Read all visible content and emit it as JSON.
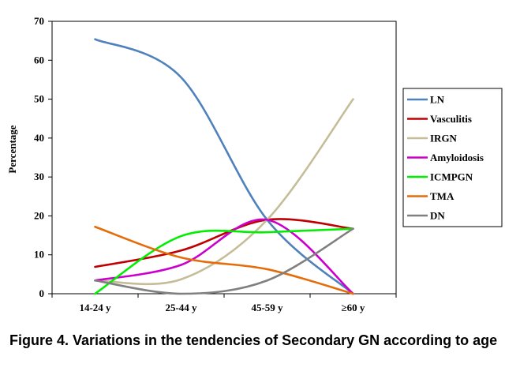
{
  "caption": "Figure 4. Variations in the tendencies of Secondary GN  according to age",
  "chart_data": {
    "type": "line",
    "categories": [
      "14-24 y",
      "25-44 y",
      "45-59 y",
      "≥60 y"
    ],
    "ylabel": "Percentage",
    "ylim": [
      0,
      70
    ],
    "yticks": [
      0,
      10,
      20,
      30,
      40,
      50,
      60,
      70
    ],
    "legend_position": "right",
    "smooth": true,
    "series": [
      {
        "name": "LN",
        "color": "#4f81bd",
        "values": [
          65.4,
          55.6,
          19.0,
          0
        ]
      },
      {
        "name": "Vasculitis",
        "color": "#c00000",
        "values": [
          6.9,
          11.1,
          19.0,
          16.7
        ]
      },
      {
        "name": "IRGN",
        "color": "#c4bd97",
        "values": [
          3.4,
          3.7,
          19.0,
          50.0
        ]
      },
      {
        "name": "Amyloidosis",
        "color": "#cc00cc",
        "values": [
          3.4,
          7.4,
          19.0,
          0
        ]
      },
      {
        "name": "ICMPGN",
        "color": "#00ee00",
        "values": [
          0,
          14.8,
          15.8,
          16.7
        ]
      },
      {
        "name": "TMA",
        "color": "#e46c0a",
        "values": [
          17.2,
          9.3,
          6.3,
          0
        ]
      },
      {
        "name": "DN",
        "color": "#808080",
        "values": [
          3.4,
          0,
          3.4,
          16.7
        ]
      }
    ]
  }
}
